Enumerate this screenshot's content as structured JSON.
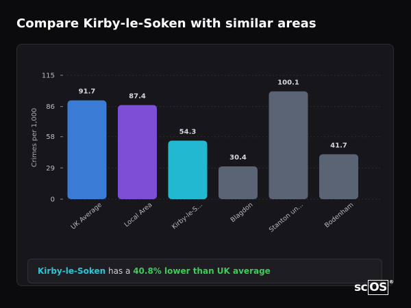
{
  "page": {
    "title": "Compare Kirby-le-Soken with similar areas"
  },
  "chart_data": {
    "type": "bar",
    "ylabel": "Crimes per 1,000",
    "xlabel": "",
    "ylim": [
      0,
      115
    ],
    "yticks": [
      0,
      29,
      58,
      86,
      115
    ],
    "grid": true,
    "categories": [
      "UK Average",
      "Local Area",
      "Kirby-le-S...",
      "Blagdon",
      "Stanton un...",
      "Bodenham"
    ],
    "values": [
      91.7,
      87.4,
      54.3,
      30.4,
      100.1,
      41.7
    ],
    "value_labels": [
      "91.7",
      "87.4",
      "54.3",
      "30.4",
      "100.1",
      "41.7"
    ],
    "colors": [
      "#3a7bd5",
      "#7c4fd6",
      "#22b8cf",
      "#5b6474",
      "#5b6474",
      "#5b6474"
    ]
  },
  "summary": {
    "area": "Kirby-le-Soken",
    "middle": " has a ",
    "delta": "40.8% lower than UK average"
  },
  "brand": {
    "prefix": "sc",
    "boxed": "OS",
    "mark": "®"
  }
}
